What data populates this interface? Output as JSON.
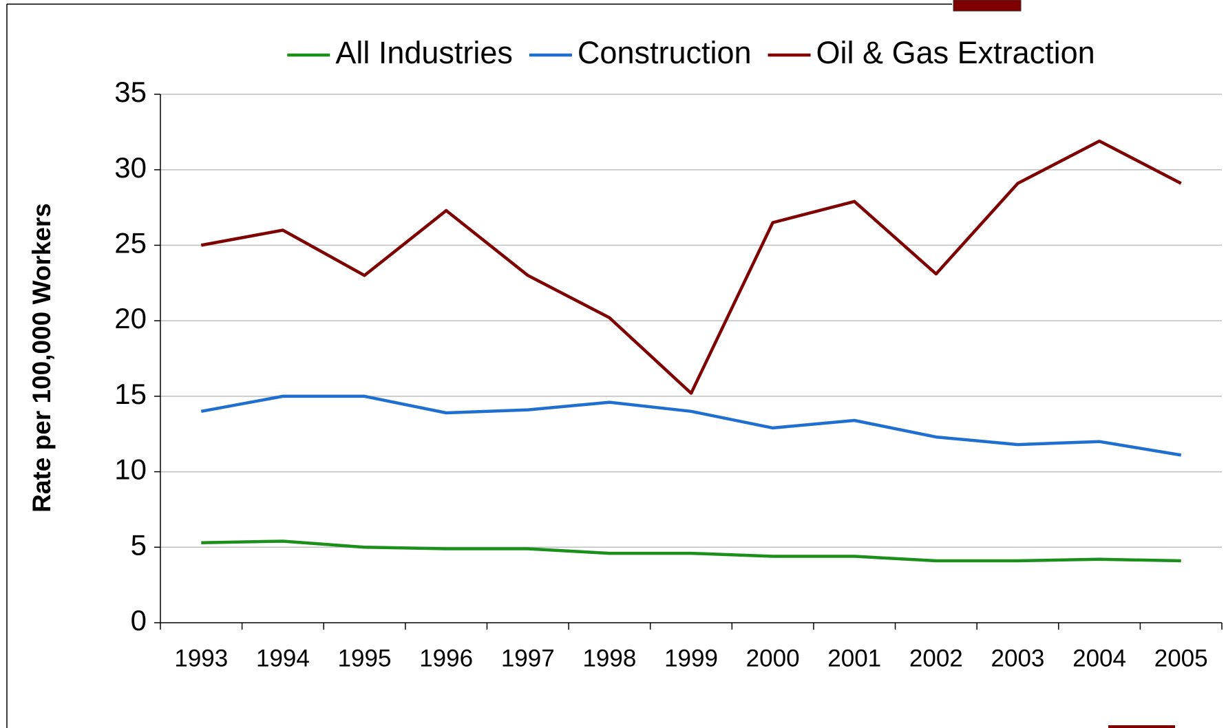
{
  "chart_data": {
    "type": "line",
    "y_label": "Rate per 100,000 Workers",
    "categories": [
      "1993",
      "1994",
      "1995",
      "1996",
      "1997",
      "1998",
      "1999",
      "2000",
      "2001",
      "2002",
      "2003",
      "2004",
      "2005"
    ],
    "series": [
      {
        "name": "All Industries",
        "color": "#1a8f1a",
        "values": [
          5.3,
          5.4,
          5.0,
          4.9,
          4.9,
          4.6,
          4.6,
          4.4,
          4.4,
          4.1,
          4.1,
          4.2,
          4.1
        ]
      },
      {
        "name": "Construction",
        "color": "#1f6fd0",
        "values": [
          14.0,
          15.0,
          15.0,
          13.9,
          14.1,
          14.6,
          14.0,
          12.9,
          13.4,
          12.3,
          11.8,
          12.0,
          11.1
        ]
      },
      {
        "name": "Oil & Gas Extraction",
        "color": "#7f0000",
        "values": [
          25.0,
          26.0,
          23.0,
          27.3,
          23.0,
          20.2,
          15.2,
          26.5,
          27.9,
          23.1,
          29.1,
          31.9,
          29.1
        ]
      }
    ],
    "ylim": [
      0,
      35
    ],
    "yticks": [
      0,
      5,
      10,
      15,
      20,
      25,
      30,
      35
    ],
    "grid": true,
    "legend": "top"
  }
}
